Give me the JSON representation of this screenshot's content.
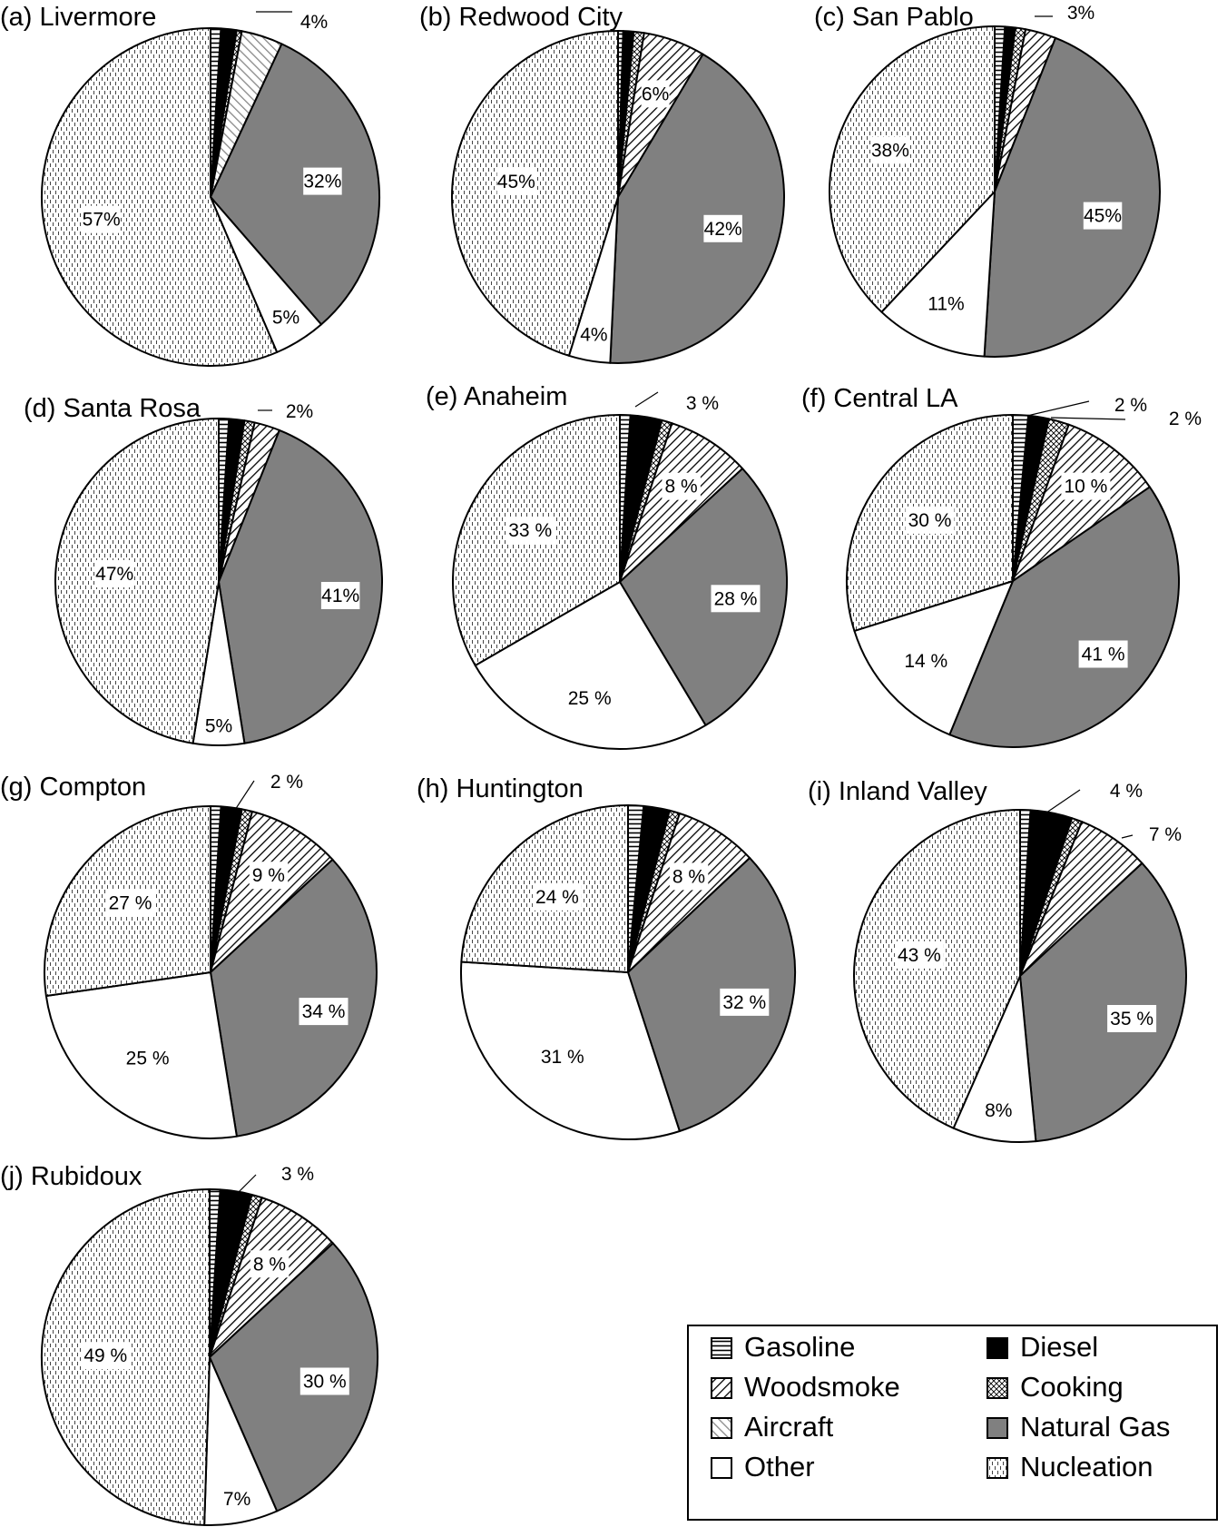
{
  "legend": [
    {
      "key": "gasoline",
      "label": "Gasoline"
    },
    {
      "key": "diesel",
      "label": "Diesel"
    },
    {
      "key": "woodsmoke",
      "label": "Woodsmoke"
    },
    {
      "key": "cooking",
      "label": "Cooking"
    },
    {
      "key": "aircraft",
      "label": "Aircraft"
    },
    {
      "key": "natural_gas",
      "label": "Natural Gas"
    },
    {
      "key": "other",
      "label": "Other"
    },
    {
      "key": "nucleation",
      "label": "Nucleation"
    }
  ],
  "colors": {
    "diesel": "#000000",
    "natural_gas": "#808080",
    "other": "#ffffff",
    "outline": "#000000"
  },
  "chart_data": [
    {
      "type": "pie",
      "title": "(a) Livermore",
      "slices": [
        {
          "key": "gasoline",
          "value": 1
        },
        {
          "key": "diesel",
          "value": 1.5
        },
        {
          "key": "cooking",
          "value": 0.5
        },
        {
          "key": "aircraft",
          "value": 4,
          "label": "4%"
        },
        {
          "key": "natural_gas",
          "value": 32,
          "label": "32%"
        },
        {
          "key": "other",
          "value": 5,
          "label": "5%"
        },
        {
          "key": "nucleation",
          "value": 57,
          "label": "57%"
        }
      ]
    },
    {
      "type": "pie",
      "title": "(b) Redwood City",
      "slices": [
        {
          "key": "gasoline",
          "value": 0.5
        },
        {
          "key": "diesel",
          "value": 1
        },
        {
          "key": "cooking",
          "value": 1
        },
        {
          "key": "woodsmoke",
          "value": 6,
          "label": "6%"
        },
        {
          "key": "natural_gas",
          "value": 42,
          "label": "42%"
        },
        {
          "key": "other",
          "value": 4,
          "label": "4%"
        },
        {
          "key": "nucleation",
          "value": 45,
          "label": "45%"
        }
      ]
    },
    {
      "type": "pie",
      "title": "(c) San Pablo",
      "slices": [
        {
          "key": "gasoline",
          "value": 1
        },
        {
          "key": "diesel",
          "value": 1
        },
        {
          "key": "cooking",
          "value": 1
        },
        {
          "key": "woodsmoke",
          "value": 3,
          "label": "3%"
        },
        {
          "key": "natural_gas",
          "value": 45,
          "label": "45%"
        },
        {
          "key": "other",
          "value": 11,
          "label": "11%"
        },
        {
          "key": "nucleation",
          "value": 38,
          "label": "38%"
        }
      ]
    },
    {
      "type": "pie",
      "title": "(d) Santa Rosa",
      "slices": [
        {
          "key": "gasoline",
          "value": 1
        },
        {
          "key": "diesel",
          "value": 1.5
        },
        {
          "key": "cooking",
          "value": 1
        },
        {
          "key": "woodsmoke",
          "value": 2.5,
          "label": "2%"
        },
        {
          "key": "natural_gas",
          "value": 41,
          "label": "41%"
        },
        {
          "key": "other",
          "value": 5,
          "label": "5%"
        },
        {
          "key": "nucleation",
          "value": 47,
          "label": "47%"
        }
      ]
    },
    {
      "type": "pie",
      "title": "(e) Anaheim",
      "slices": [
        {
          "key": "gasoline",
          "value": 1
        },
        {
          "key": "diesel",
          "value": 3,
          "label": "3 %"
        },
        {
          "key": "cooking",
          "value": 1
        },
        {
          "key": "woodsmoke",
          "value": 8,
          "label": "8 %"
        },
        {
          "key": "natural_gas",
          "value": 28,
          "label": "28 %"
        },
        {
          "key": "other",
          "value": 25,
          "label": "25 %"
        },
        {
          "key": "nucleation",
          "value": 33,
          "label": "33 %"
        }
      ]
    },
    {
      "type": "pie",
      "title": "(f) Central LA",
      "slices": [
        {
          "key": "gasoline",
          "value": 1.5
        },
        {
          "key": "diesel",
          "value": 2,
          "label": "2 %"
        },
        {
          "key": "cooking",
          "value": 2,
          "label": "2 %"
        },
        {
          "key": "woodsmoke",
          "value": 10,
          "label": "10 %"
        },
        {
          "key": "natural_gas",
          "value": 41,
          "label": "41 %"
        },
        {
          "key": "other",
          "value": 14,
          "label": "14 %"
        },
        {
          "key": "nucleation",
          "value": 30,
          "label": "30 %"
        }
      ]
    },
    {
      "type": "pie",
      "title": "(g) Compton",
      "slices": [
        {
          "key": "gasoline",
          "value": 1
        },
        {
          "key": "diesel",
          "value": 2,
          "label": "2 %"
        },
        {
          "key": "cooking",
          "value": 1
        },
        {
          "key": "woodsmoke",
          "value": 9,
          "label": "9 %"
        },
        {
          "key": "natural_gas",
          "value": 34,
          "label": "34 %"
        },
        {
          "key": "other",
          "value": 25,
          "label": "25 %"
        },
        {
          "key": "nucleation",
          "value": 27,
          "label": "27 %"
        }
      ]
    },
    {
      "type": "pie",
      "title": "(h) Huntington",
      "slices": [
        {
          "key": "gasoline",
          "value": 1.5
        },
        {
          "key": "diesel",
          "value": 2.5
        },
        {
          "key": "cooking",
          "value": 1
        },
        {
          "key": "woodsmoke",
          "value": 8,
          "label": "8 %"
        },
        {
          "key": "natural_gas",
          "value": 32,
          "label": "32 %"
        },
        {
          "key": "other",
          "value": 31,
          "label": "31 %"
        },
        {
          "key": "nucleation",
          "value": 24,
          "label": "24 %"
        }
      ]
    },
    {
      "type": "pie",
      "title": "(i) Inland Valley",
      "slices": [
        {
          "key": "gasoline",
          "value": 1
        },
        {
          "key": "diesel",
          "value": 4,
          "label": "4 %"
        },
        {
          "key": "cooking",
          "value": 1
        },
        {
          "key": "woodsmoke",
          "value": 7,
          "label": "7 %"
        },
        {
          "key": "natural_gas",
          "value": 35,
          "label": "35 %"
        },
        {
          "key": "other",
          "value": 8,
          "label": "8%"
        },
        {
          "key": "nucleation",
          "value": 43,
          "label": "43 %"
        }
      ]
    },
    {
      "type": "pie",
      "title": "(j) Rubidoux",
      "slices": [
        {
          "key": "gasoline",
          "value": 1
        },
        {
          "key": "diesel",
          "value": 3,
          "label": "3 %"
        },
        {
          "key": "cooking",
          "value": 1
        },
        {
          "key": "woodsmoke",
          "value": 8,
          "label": "8 %"
        },
        {
          "key": "natural_gas",
          "value": 30,
          "label": "30 %"
        },
        {
          "key": "other",
          "value": 7,
          "label": "7%"
        },
        {
          "key": "nucleation",
          "value": 49,
          "label": "49 %"
        }
      ]
    }
  ]
}
